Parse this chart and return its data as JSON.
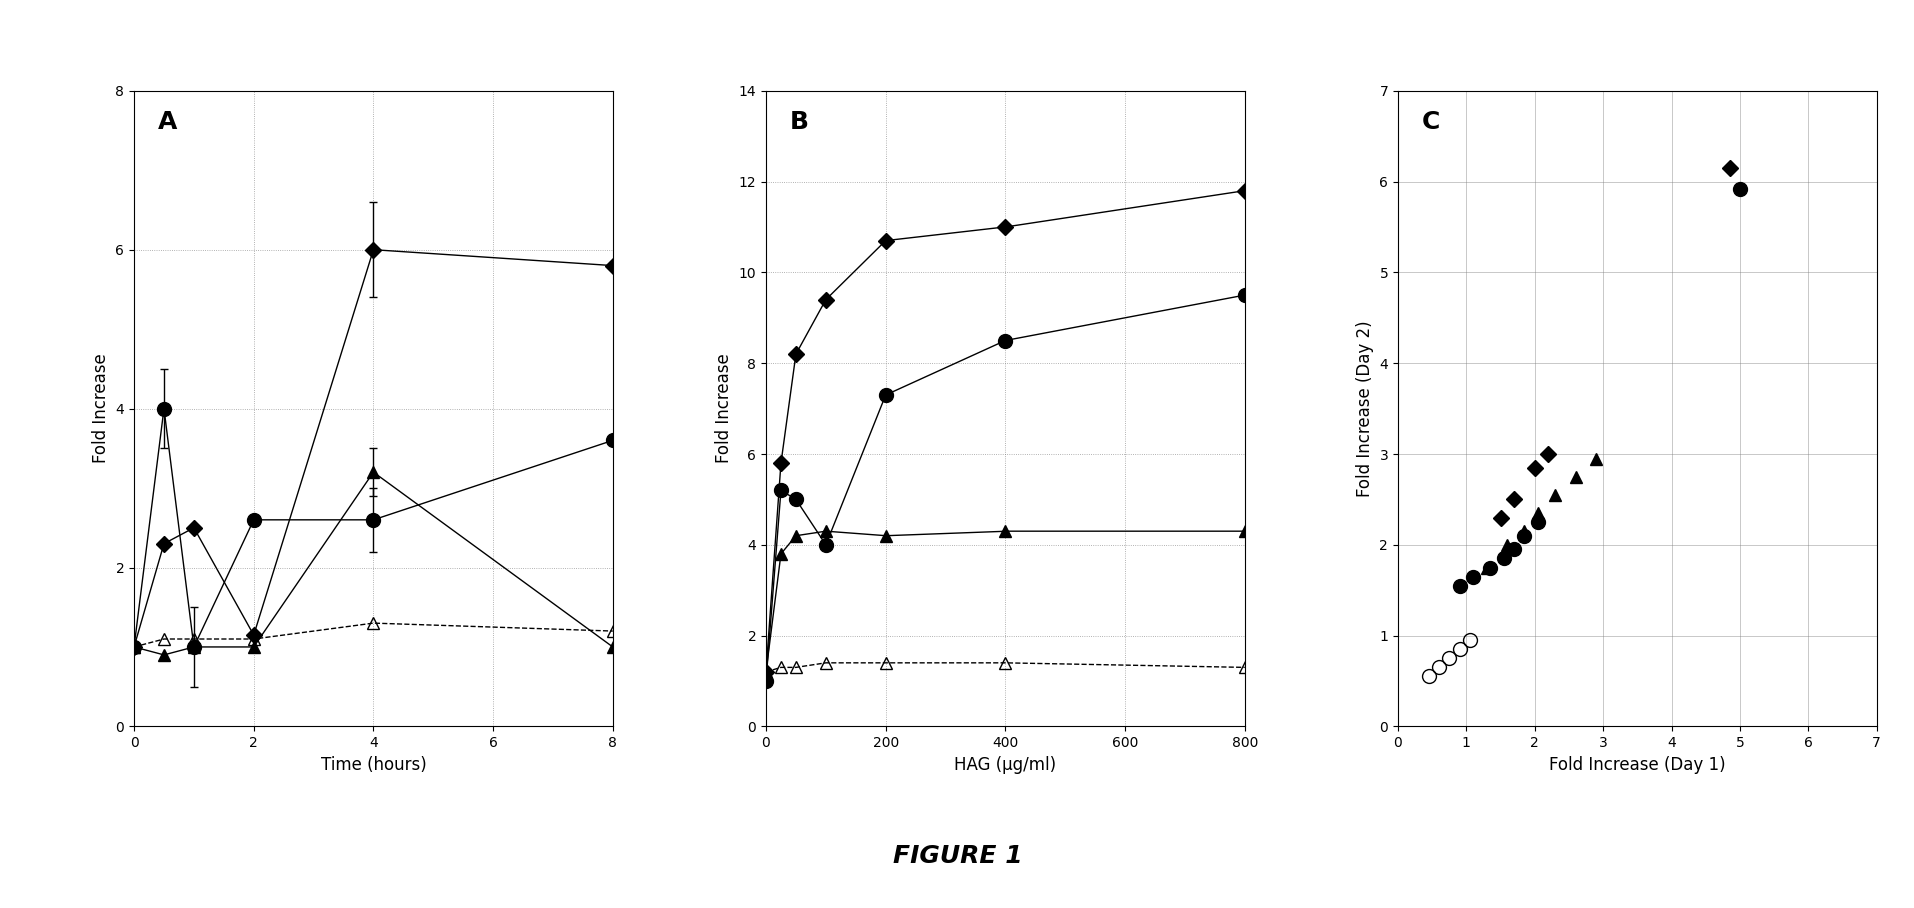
{
  "panel_A": {
    "title": "A",
    "xlabel": "Time (hours)",
    "ylabel": "Fold Increase",
    "xlim": [
      0,
      8
    ],
    "ylim": [
      0,
      8
    ],
    "xticks": [
      0,
      2,
      4,
      6,
      8
    ],
    "yticks": [
      0,
      2,
      4,
      6,
      8
    ],
    "series": {
      "diamond": {
        "x": [
          0,
          0.5,
          1,
          2,
          4,
          8
        ],
        "y": [
          1.0,
          2.3,
          2.5,
          1.15,
          6.0,
          5.8
        ],
        "yerr": [
          null,
          null,
          null,
          null,
          0.6,
          null
        ],
        "marker": "D",
        "linestyle": "-",
        "color": "black",
        "filled": true
      },
      "circle": {
        "x": [
          0,
          0.5,
          1,
          2,
          4,
          8
        ],
        "y": [
          1.0,
          4.0,
          1.0,
          2.6,
          2.6,
          3.6
        ],
        "yerr": [
          null,
          0.5,
          0.5,
          null,
          0.4,
          null
        ],
        "marker": "o",
        "linestyle": "-",
        "color": "black",
        "filled": true
      },
      "triangle": {
        "x": [
          0,
          0.5,
          1,
          2,
          4,
          8
        ],
        "y": [
          1.0,
          0.9,
          1.0,
          1.0,
          3.2,
          1.0
        ],
        "yerr": [
          null,
          null,
          null,
          null,
          0.3,
          null
        ],
        "marker": "^",
        "linestyle": "-",
        "color": "black",
        "filled": true
      },
      "triangle_open": {
        "x": [
          0,
          0.5,
          1,
          2,
          4,
          8
        ],
        "y": [
          1.0,
          1.1,
          1.1,
          1.1,
          1.3,
          1.2
        ],
        "marker": "^",
        "linestyle": "--",
        "color": "black",
        "filled": false
      }
    }
  },
  "panel_B": {
    "title": "B",
    "xlabel": "HAG (μg/ml)",
    "ylabel": "Fold Increase",
    "xlim": [
      0,
      800
    ],
    "ylim": [
      0,
      14
    ],
    "xticks": [
      0,
      200,
      400,
      600,
      800
    ],
    "yticks": [
      0,
      2,
      4,
      6,
      8,
      10,
      12,
      14
    ],
    "series": {
      "diamond": {
        "x": [
          0,
          25,
          50,
          100,
          200,
          400,
          800
        ],
        "y": [
          1.2,
          5.8,
          8.2,
          9.4,
          10.7,
          11.0,
          11.8
        ],
        "marker": "D",
        "linestyle": "-",
        "color": "black",
        "filled": true
      },
      "circle": {
        "x": [
          0,
          25,
          50,
          100,
          200,
          400,
          800
        ],
        "y": [
          1.0,
          5.2,
          5.0,
          4.0,
          7.3,
          8.5,
          9.5
        ],
        "marker": "o",
        "linestyle": "-",
        "color": "black",
        "filled": true
      },
      "triangle": {
        "x": [
          0,
          25,
          50,
          100,
          200,
          400,
          800
        ],
        "y": [
          1.2,
          3.8,
          4.2,
          4.3,
          4.2,
          4.3,
          4.3
        ],
        "marker": "^",
        "linestyle": "-",
        "color": "black",
        "filled": true
      },
      "triangle_open": {
        "x": [
          0,
          25,
          50,
          100,
          200,
          400,
          800
        ],
        "y": [
          1.2,
          1.3,
          1.3,
          1.4,
          1.4,
          1.4,
          1.3
        ],
        "marker": "^",
        "linestyle": "--",
        "color": "black",
        "filled": false
      }
    }
  },
  "panel_C": {
    "title": "C",
    "xlabel": "Fold Increase (Day 1)",
    "ylabel": "Fold Increase (Day 2)",
    "xlim": [
      0,
      7
    ],
    "ylim": [
      0,
      7
    ],
    "xticks": [
      0,
      1,
      2,
      3,
      4,
      5,
      6,
      7
    ],
    "yticks": [
      0,
      1,
      2,
      3,
      4,
      5,
      6,
      7
    ],
    "series": {
      "diamond": {
        "x": [
          1.5,
          1.7,
          2.0,
          2.2,
          4.85
        ],
        "y": [
          2.3,
          2.5,
          2.85,
          3.0,
          6.15
        ],
        "marker": "D",
        "color": "black",
        "filled": true
      },
      "circle": {
        "x": [
          0.9,
          1.1,
          1.35,
          1.55,
          1.7,
          1.85,
          2.05,
          5.0
        ],
        "y": [
          1.55,
          1.65,
          1.75,
          1.85,
          1.95,
          2.1,
          2.25,
          5.92
        ],
        "marker": "o",
        "color": "black",
        "filled": true
      },
      "triangle": {
        "x": [
          1.3,
          1.6,
          1.85,
          2.05,
          2.3,
          2.6,
          2.9
        ],
        "y": [
          1.75,
          2.0,
          2.15,
          2.35,
          2.55,
          2.75,
          2.95
        ],
        "marker": "^",
        "color": "black",
        "filled": true
      },
      "circle_open": {
        "x": [
          0.45,
          0.6,
          0.75,
          0.9,
          1.05
        ],
        "y": [
          0.55,
          0.65,
          0.75,
          0.85,
          0.95
        ],
        "marker": "o",
        "color": "black",
        "filled": false
      }
    }
  },
  "figure_label": "FIGURE 1",
  "background_color": "#ffffff"
}
